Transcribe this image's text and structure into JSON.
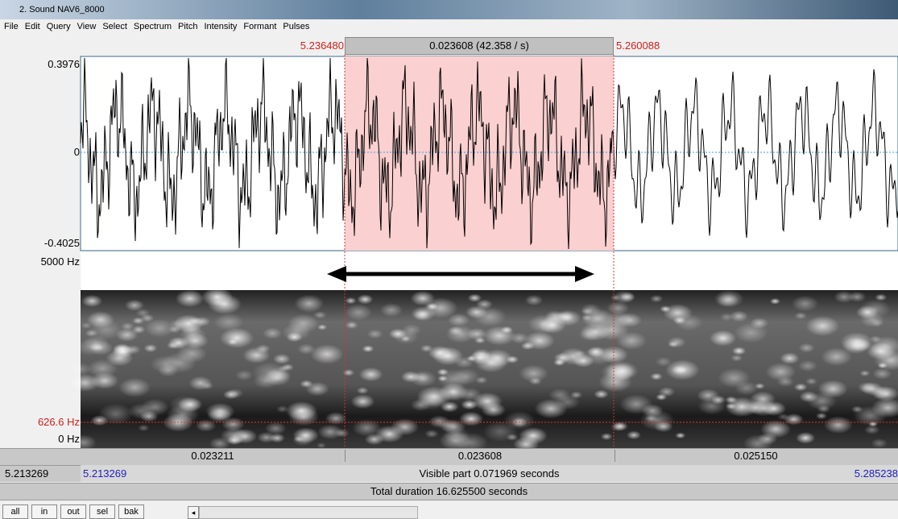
{
  "window": {
    "title": "2. Sound NAV6_8000"
  },
  "menu": [
    "File",
    "Edit",
    "Query",
    "View",
    "Select",
    "Spectrum",
    "Pitch",
    "Intensity",
    "Formant",
    "Pulses"
  ],
  "selection": {
    "start": "5.236480",
    "duration": "0.023608 (42.358 / s)",
    "end": "5.260088"
  },
  "waveform": {
    "max": "0.3976",
    "zero": "0",
    "min": "-0.4025"
  },
  "spectrogram": {
    "top": "5000 Hz",
    "cursor": "626.6 Hz",
    "bottom": "0 Hz"
  },
  "durations": [
    "0.023211",
    "0.023608",
    "0.025150"
  ],
  "visible": {
    "left": "5.213269",
    "start": "5.213269",
    "label": "Visible part 0.071969 seconds",
    "end": "5.285238"
  },
  "total": "Total duration 16.625500 seconds",
  "buttons": [
    "all",
    "in",
    "out",
    "sel",
    "bak"
  ]
}
